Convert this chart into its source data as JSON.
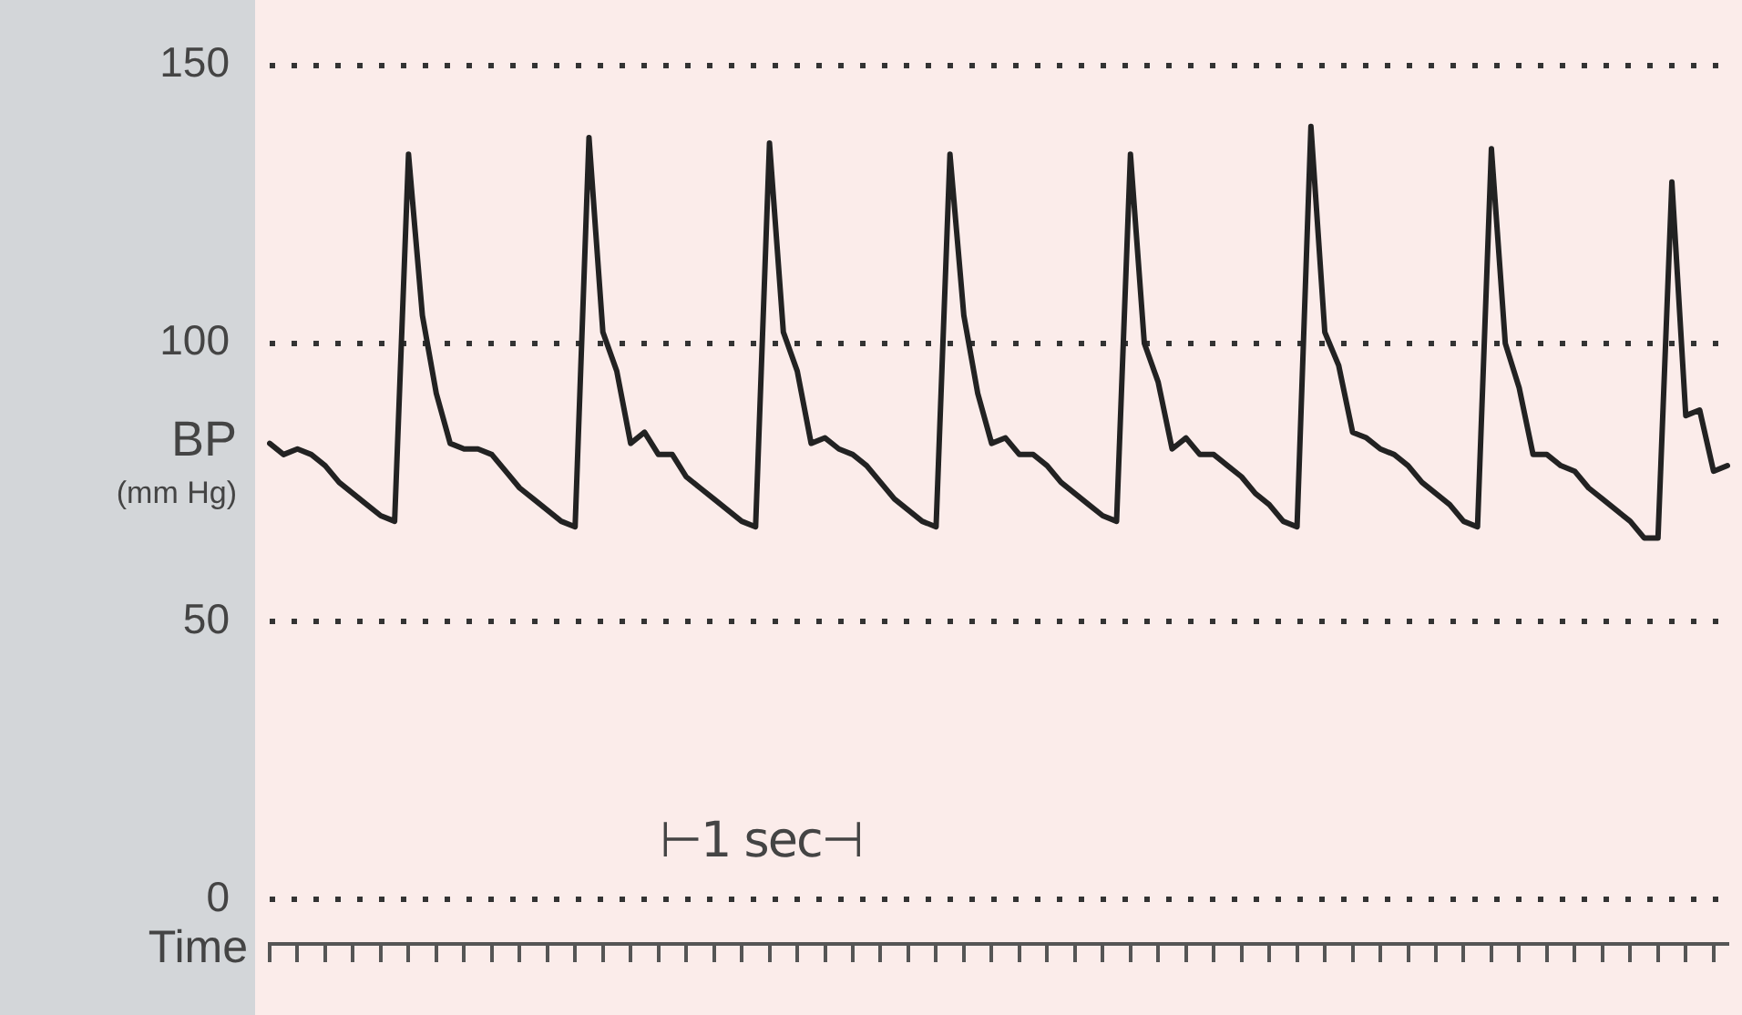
{
  "chart_data": {
    "type": "line",
    "xlabel": "Time",
    "ylabel": "BP\n(mm Hg)",
    "annotations": [
      "⊢1 sec⊣"
    ],
    "color": "#222222",
    "marker": "none",
    "line_style": "solid",
    "grid": "y",
    "ylim": [
      -8,
      150
    ],
    "yticks": [
      0,
      50,
      100,
      150
    ],
    "categories": [
      null,
      null,
      null,
      null,
      null,
      null,
      null,
      null,
      null,
      null,
      null,
      null,
      null,
      null,
      null,
      null,
      null,
      null,
      null,
      null,
      null,
      null,
      null,
      null,
      null,
      null,
      null,
      null,
      null,
      null,
      null,
      null,
      null,
      null,
      null,
      null,
      null,
      null,
      null,
      null,
      null,
      null,
      null,
      null,
      null,
      null,
      null,
      null,
      null,
      null,
      null,
      null,
      null,
      null,
      null,
      null,
      null,
      null,
      null,
      null,
      null,
      null,
      null,
      null,
      null,
      null,
      null,
      null,
      null,
      null,
      null,
      null,
      null,
      null,
      null,
      null,
      null,
      null,
      null,
      null,
      null,
      null,
      null,
      null,
      null,
      null,
      null,
      null,
      null,
      null,
      null,
      null,
      null,
      null,
      null,
      null,
      null,
      null,
      null,
      null,
      null,
      null,
      null,
      null,
      null,
      null
    ],
    "values": [
      82,
      80,
      81,
      80,
      78,
      75,
      73,
      71,
      69,
      68,
      134,
      105,
      91,
      82,
      81,
      81,
      80,
      77,
      74,
      72,
      70,
      68,
      67,
      137,
      102,
      95,
      82,
      84,
      80,
      80,
      76,
      74,
      72,
      70,
      68,
      67,
      136,
      102,
      95,
      82,
      83,
      81,
      80,
      78,
      75,
      72,
      70,
      68,
      67,
      134,
      105,
      91,
      82,
      83,
      80,
      80,
      78,
      75,
      73,
      71,
      69,
      68,
      134,
      100,
      93,
      81,
      83,
      80,
      80,
      78,
      76,
      73,
      71,
      68,
      67,
      139,
      102,
      96,
      84,
      83,
      81,
      80,
      78,
      75,
      73,
      71,
      68,
      67,
      135,
      100,
      92,
      80,
      80,
      78,
      77,
      74,
      72,
      70,
      68,
      65,
      65,
      129,
      87,
      88,
      77,
      78
    ]
  }
}
